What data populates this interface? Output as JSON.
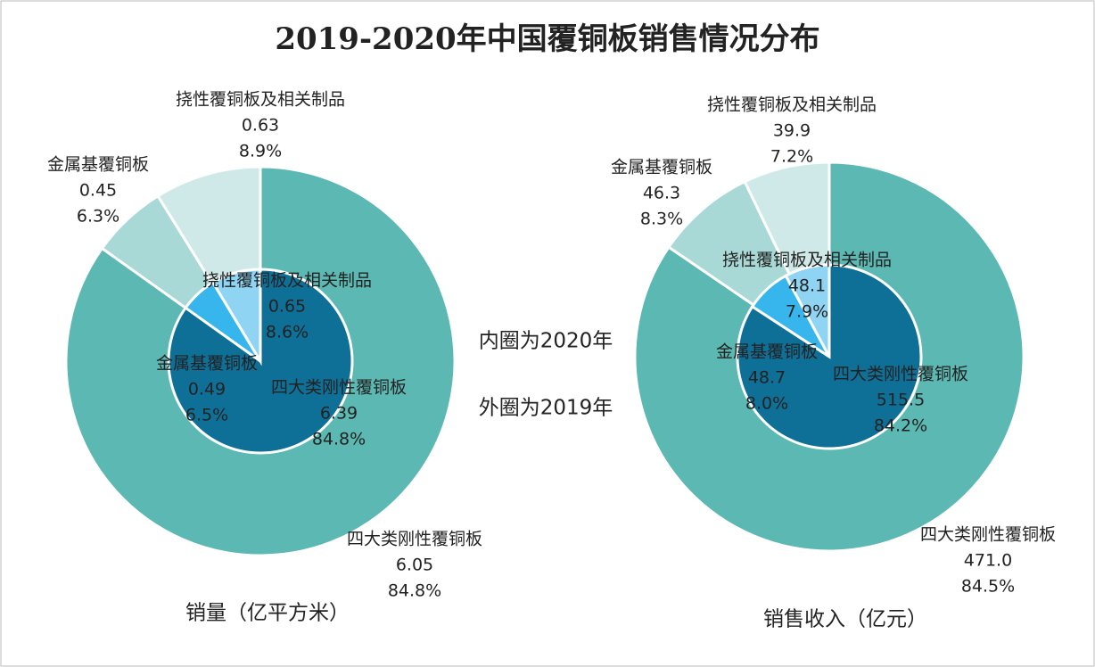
{
  "title": "2019-2020年中国覆铜板销售情况分布",
  "annotations": [
    "内圈为2020年",
    "外圈为2019年"
  ],
  "chart_data": [
    {
      "type": "pie",
      "title": "销量（亿平方米）",
      "categories": [
        "四大类刚性覆铜板",
        "金属基覆铜板",
        "挠性覆铜板及相关制品"
      ],
      "series": [
        {
          "values": [
            6.05,
            0.45,
            0.63
          ],
          "value_labels": [
            "6.05",
            "0.45",
            "0.63"
          ],
          "shares": [
            84.8,
            6.3,
            8.9
          ],
          "share_labels": [
            "84.8%",
            "6.3%",
            "8.9%"
          ],
          "colors": [
            "#5cb8b3",
            "#a9d9d6",
            "#cfe9e8"
          ]
        },
        {
          "values": [
            6.39,
            0.49,
            0.65
          ],
          "value_labels": [
            "6.39",
            "0.49",
            "0.65"
          ],
          "shares": [
            84.8,
            6.5,
            8.6
          ],
          "share_labels": [
            "84.8%",
            "6.5%",
            "8.6%"
          ],
          "colors": [
            "#0e6f97",
            "#36b6ec",
            "#8fd4f3"
          ]
        }
      ]
    },
    {
      "type": "pie",
      "title": "销售收入（亿元）",
      "categories": [
        "四大类刚性覆铜板",
        "金属基覆铜板",
        "挠性覆铜板及相关制品"
      ],
      "series": [
        {
          "values": [
            471.0,
            46.3,
            39.9
          ],
          "value_labels": [
            "471.0",
            "46.3",
            "39.9"
          ],
          "shares": [
            84.5,
            8.3,
            7.2
          ],
          "share_labels": [
            "84.5%",
            "8.3%",
            "7.2%"
          ],
          "colors": [
            "#5cb8b3",
            "#a9d9d6",
            "#cfe9e8"
          ]
        },
        {
          "values": [
            515.5,
            48.7,
            48.1
          ],
          "value_labels": [
            "515.5",
            "48.7",
            "48.1"
          ],
          "shares": [
            84.2,
            8.0,
            7.9
          ],
          "share_labels": [
            "84.2%",
            "8.0%",
            "7.9%"
          ],
          "colors": [
            "#0e6f97",
            "#36b6ec",
            "#8fd4f3"
          ]
        }
      ]
    }
  ]
}
